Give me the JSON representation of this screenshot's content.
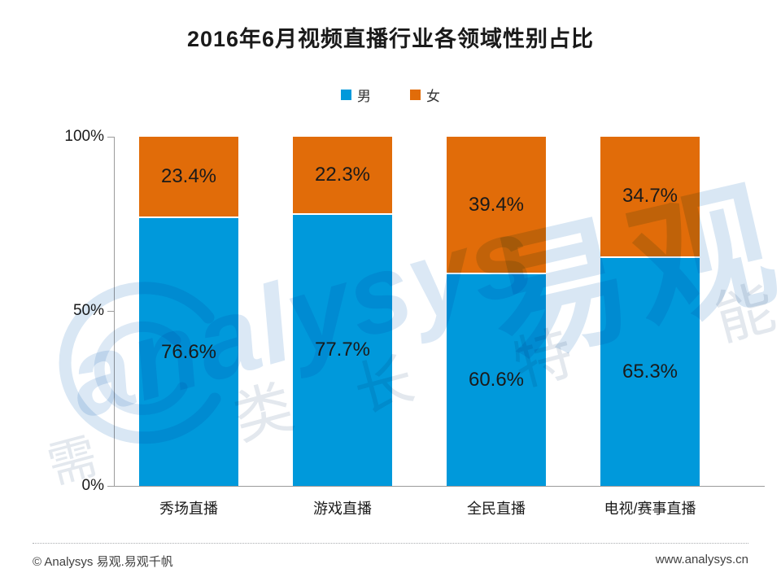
{
  "title": "2016年6月视频直播行业各领域性别占比",
  "chart_data": {
    "type": "bar",
    "stacked": true,
    "title": "2016年6月视频直播行业各领域性别占比",
    "categories": [
      "秀场直播",
      "游戏直播",
      "全民直播",
      "电视/赛事直播"
    ],
    "series": [
      {
        "name": "男",
        "color": "#0099DB",
        "values": [
          76.6,
          77.7,
          60.6,
          65.3
        ]
      },
      {
        "name": "女",
        "color": "#E16C09",
        "values": [
          23.4,
          22.3,
          39.4,
          34.7
        ]
      }
    ],
    "value_suffix": "%",
    "ylim": [
      0,
      100
    ],
    "y_ticks": [
      "100%",
      "50%",
      "0%"
    ],
    "grid": false,
    "legend_position": "top-center",
    "xlabel": "",
    "ylabel": ""
  },
  "legend": {
    "items": [
      {
        "label": "男",
        "color": "#0099DB"
      },
      {
        "label": "女",
        "color": "#E16C09"
      }
    ]
  },
  "watermark": {
    "brand_text": "analysys",
    "cn_text": "易观",
    "faint_chars": [
      "类",
      "长",
      "特",
      "需",
      "能"
    ]
  },
  "footer": {
    "left": "© Analysys 易观.易观千帆",
    "right": "www.analysys.cn"
  },
  "colors": {
    "male": "#0099DB",
    "female": "#E16C09",
    "axis": "#9B9B9B",
    "text": "#1A1A1A",
    "watermark_blue": "#D9E7F4",
    "watermark_gray": "#E3E8EE"
  }
}
